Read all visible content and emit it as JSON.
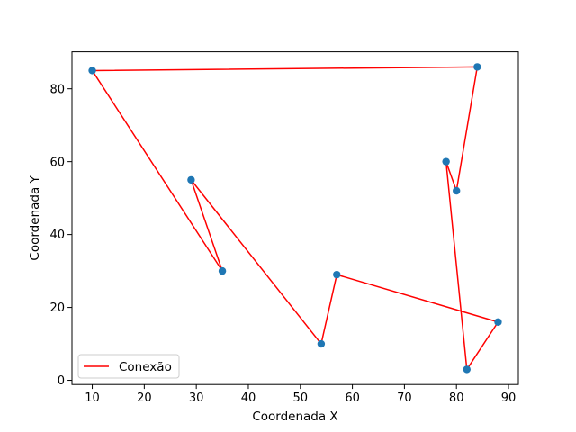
{
  "chart_data": {
    "type": "scatter",
    "title": "",
    "xlabel": "Coordenada X",
    "ylabel": "Coordenada Y",
    "xlim": [
      6.1,
      91.9
    ],
    "ylim": [
      -1.15,
      90.15
    ],
    "xticks": [
      10,
      20,
      30,
      40,
      50,
      60,
      70,
      80,
      90
    ],
    "yticks": [
      0,
      20,
      40,
      60,
      80
    ],
    "grid": false,
    "legend_position": "lower-left",
    "points": {
      "x": [
        10,
        84,
        80,
        78,
        82,
        88,
        57,
        54,
        29,
        35
      ],
      "y": [
        85,
        86,
        52,
        60,
        3,
        16,
        29,
        10,
        55,
        30
      ],
      "color": "#1f77b4"
    },
    "series": [
      {
        "name": "Conexão",
        "type": "line",
        "color": "#ff0000",
        "x": [
          10,
          84,
          80,
          78,
          82,
          88,
          57,
          54,
          29,
          35,
          10
        ],
        "y": [
          85,
          86,
          52,
          60,
          3,
          16,
          29,
          10,
          55,
          30,
          85
        ]
      }
    ]
  }
}
